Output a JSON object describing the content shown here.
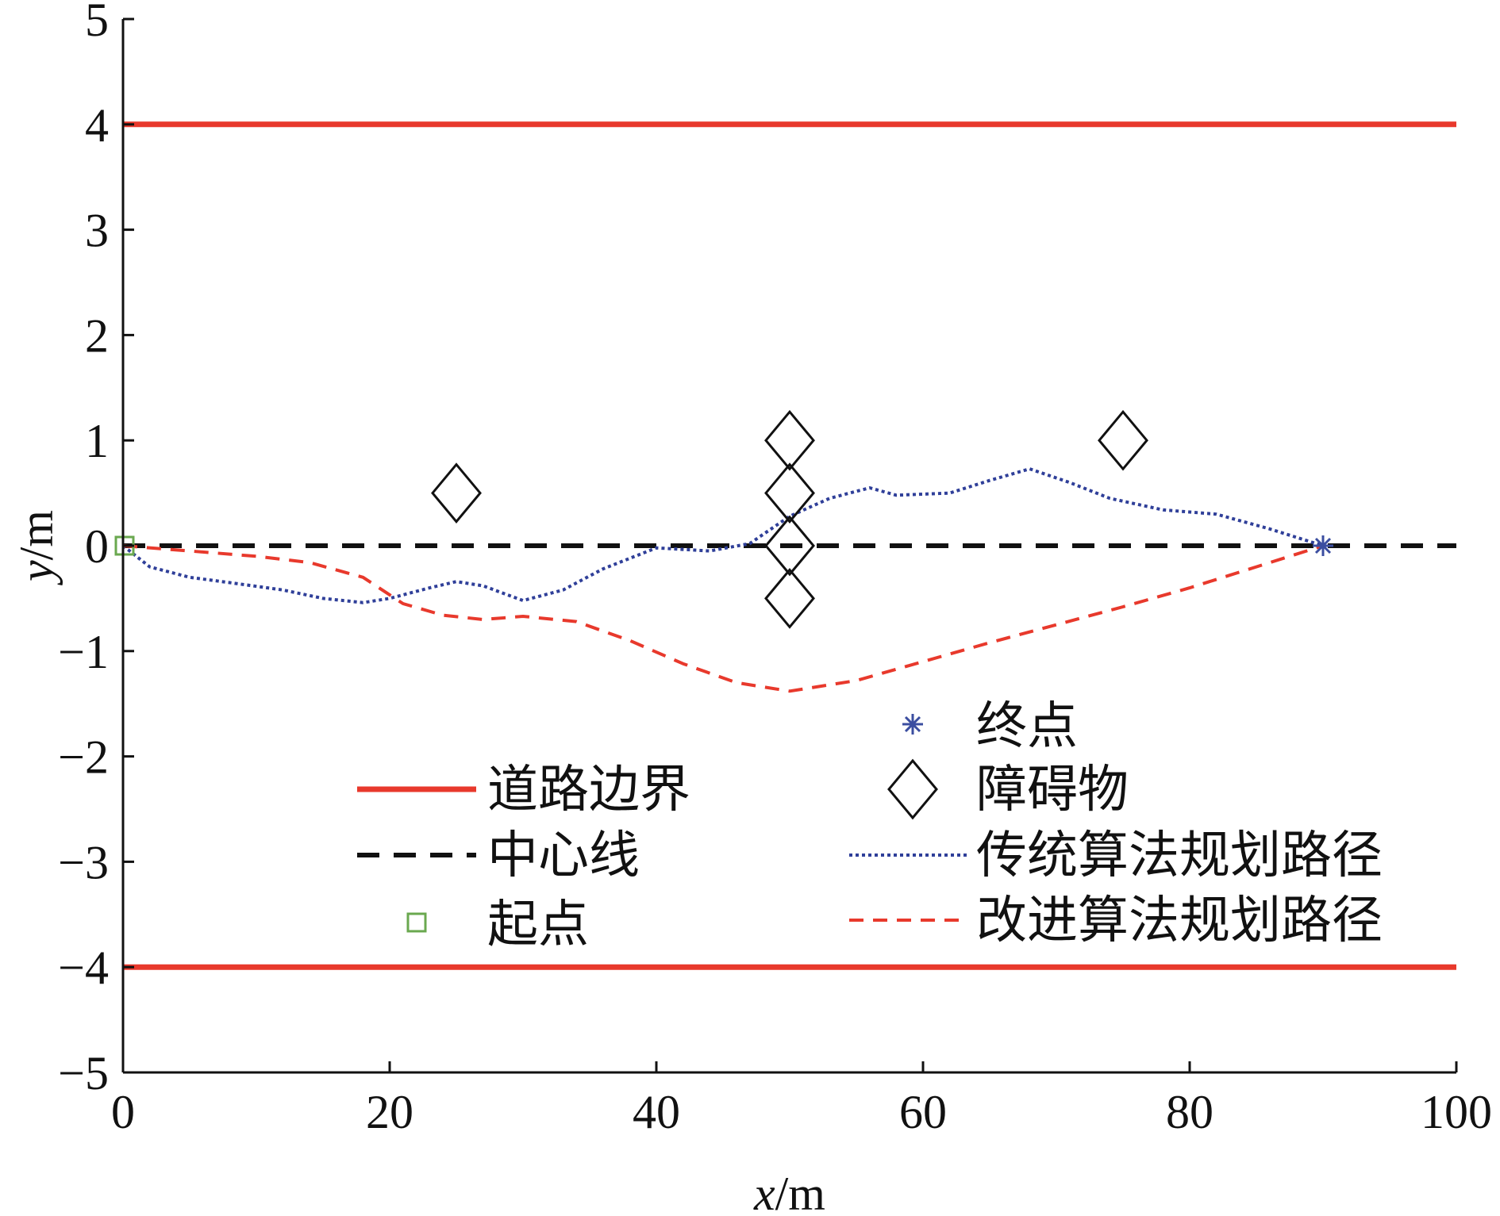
{
  "chart_data": {
    "type": "line",
    "xlabel": {
      "var": "x",
      "unit": "/m"
    },
    "ylabel": {
      "var": "y",
      "unit": "/m"
    },
    "xlim": [
      0,
      100
    ],
    "ylim": [
      -5,
      5
    ],
    "xticks": [
      "0",
      "20",
      "40",
      "60",
      "80",
      "100"
    ],
    "yticks": [
      "5",
      "4",
      "3",
      "2",
      "1",
      "0",
      "−1",
      "−2",
      "−3",
      "−4",
      "−5"
    ],
    "grid": false,
    "legend_position": "lower-center",
    "colors": {
      "boundary": "#e8392c",
      "centerline": "#111111",
      "start": "#6aa84f",
      "end": "#3b4ea0",
      "obstacle": "#111111",
      "traditional": "#2f3f99",
      "improved": "#e8392c"
    },
    "series": [
      {
        "name": "道路边界",
        "style": "solid",
        "x": [
          0,
          100
        ],
        "y": [
          4,
          4
        ]
      },
      {
        "name": "道路边界",
        "style": "solid",
        "x": [
          0,
          100
        ],
        "y": [
          -4,
          -4
        ]
      },
      {
        "name": "中心线",
        "style": "dashed",
        "x": [
          0,
          100
        ],
        "y": [
          0,
          0
        ]
      },
      {
        "name": "传统算法规划路径",
        "style": "dotted",
        "x": [
          0,
          2,
          5,
          8,
          12,
          15,
          18,
          20,
          23,
          25,
          27,
          30,
          33,
          36,
          40,
          44,
          47,
          50,
          53,
          56,
          58,
          62,
          65,
          68,
          71,
          74,
          78,
          82,
          86,
          90
        ],
        "y": [
          0,
          -0.2,
          -0.3,
          -0.35,
          -0.42,
          -0.5,
          -0.54,
          -0.5,
          -0.4,
          -0.34,
          -0.38,
          -0.52,
          -0.42,
          -0.22,
          -0.02,
          -0.05,
          0.02,
          0.28,
          0.45,
          0.55,
          0.48,
          0.5,
          0.62,
          0.73,
          0.6,
          0.45,
          0.34,
          0.3,
          0.16,
          0
        ]
      },
      {
        "name": "改进算法规划路径",
        "style": "dashed",
        "x": [
          0,
          5,
          10,
          14,
          18,
          21,
          24,
          27,
          30,
          34,
          38,
          42,
          46,
          50,
          55,
          60,
          65,
          70,
          75,
          80,
          85,
          90
        ],
        "y": [
          0,
          -0.05,
          -0.1,
          -0.16,
          -0.3,
          -0.55,
          -0.66,
          -0.7,
          -0.67,
          -0.72,
          -0.9,
          -1.12,
          -1.3,
          -1.38,
          -1.28,
          -1.1,
          -0.92,
          -0.75,
          -0.58,
          -0.4,
          -0.2,
          0
        ]
      }
    ],
    "markers": {
      "start": {
        "name": "起点",
        "x": 0,
        "y": 0,
        "shape": "square"
      },
      "end": {
        "name": "终点",
        "x": 90,
        "y": 0,
        "shape": "asterisk"
      },
      "obstacles": {
        "name": "障碍物",
        "shape": "diamond",
        "points": [
          {
            "x": 25,
            "y": 0.5
          },
          {
            "x": 50,
            "y": 1
          },
          {
            "x": 50,
            "y": 0.5
          },
          {
            "x": 50,
            "y": 0
          },
          {
            "x": 50,
            "y": -0.5
          },
          {
            "x": 75,
            "y": 1
          }
        ]
      }
    },
    "legend": [
      {
        "label": "终点",
        "key": "end"
      },
      {
        "label": "道路边界",
        "key": "boundary"
      },
      {
        "label": "障碍物",
        "key": "obstacle"
      },
      {
        "label": "中心线",
        "key": "centerline"
      },
      {
        "label": "传统算法规划路径",
        "key": "traditional"
      },
      {
        "label": "起点",
        "key": "start"
      },
      {
        "label": "改进算法规划路径",
        "key": "improved"
      }
    ]
  }
}
